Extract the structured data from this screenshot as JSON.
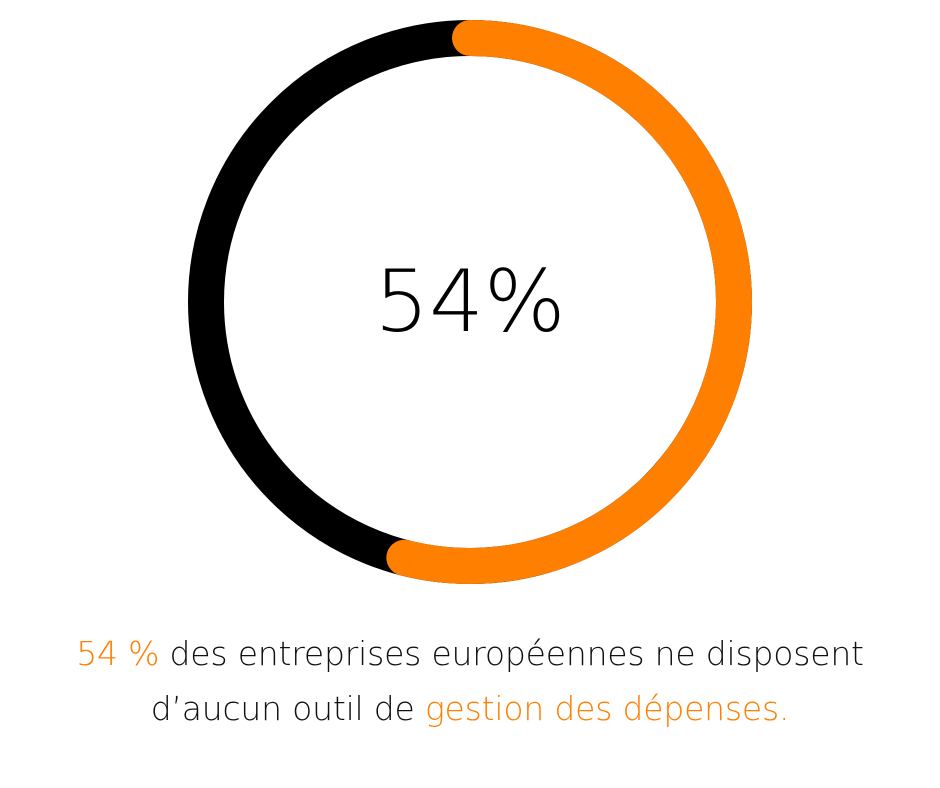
{
  "chart_data": {
    "type": "pie",
    "variant": "donut",
    "value_percent": 54,
    "segments": [
      {
        "value": 54,
        "color": "#ff7f00"
      },
      {
        "value": 46,
        "color": "#000000"
      }
    ],
    "center_label": "54%"
  },
  "caption": {
    "line1_highlight": "54 %",
    "line1_text": " des entreprises européennes ne disposent",
    "line2_text": "d’aucun outil de ",
    "line2_highlight": "gestion des dépenses."
  },
  "colors": {
    "accent": "#ff7f00",
    "dark": "#000000",
    "text": "#111111"
  }
}
